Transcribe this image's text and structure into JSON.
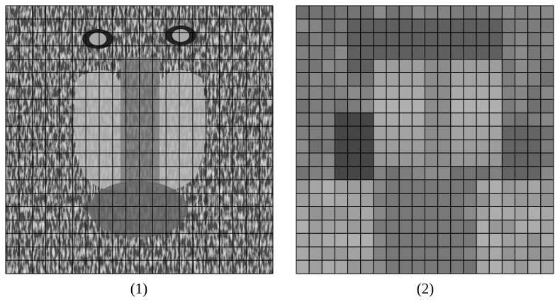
{
  "panels": [
    {
      "label": "(1)"
    },
    {
      "label": "(2)"
    }
  ]
}
